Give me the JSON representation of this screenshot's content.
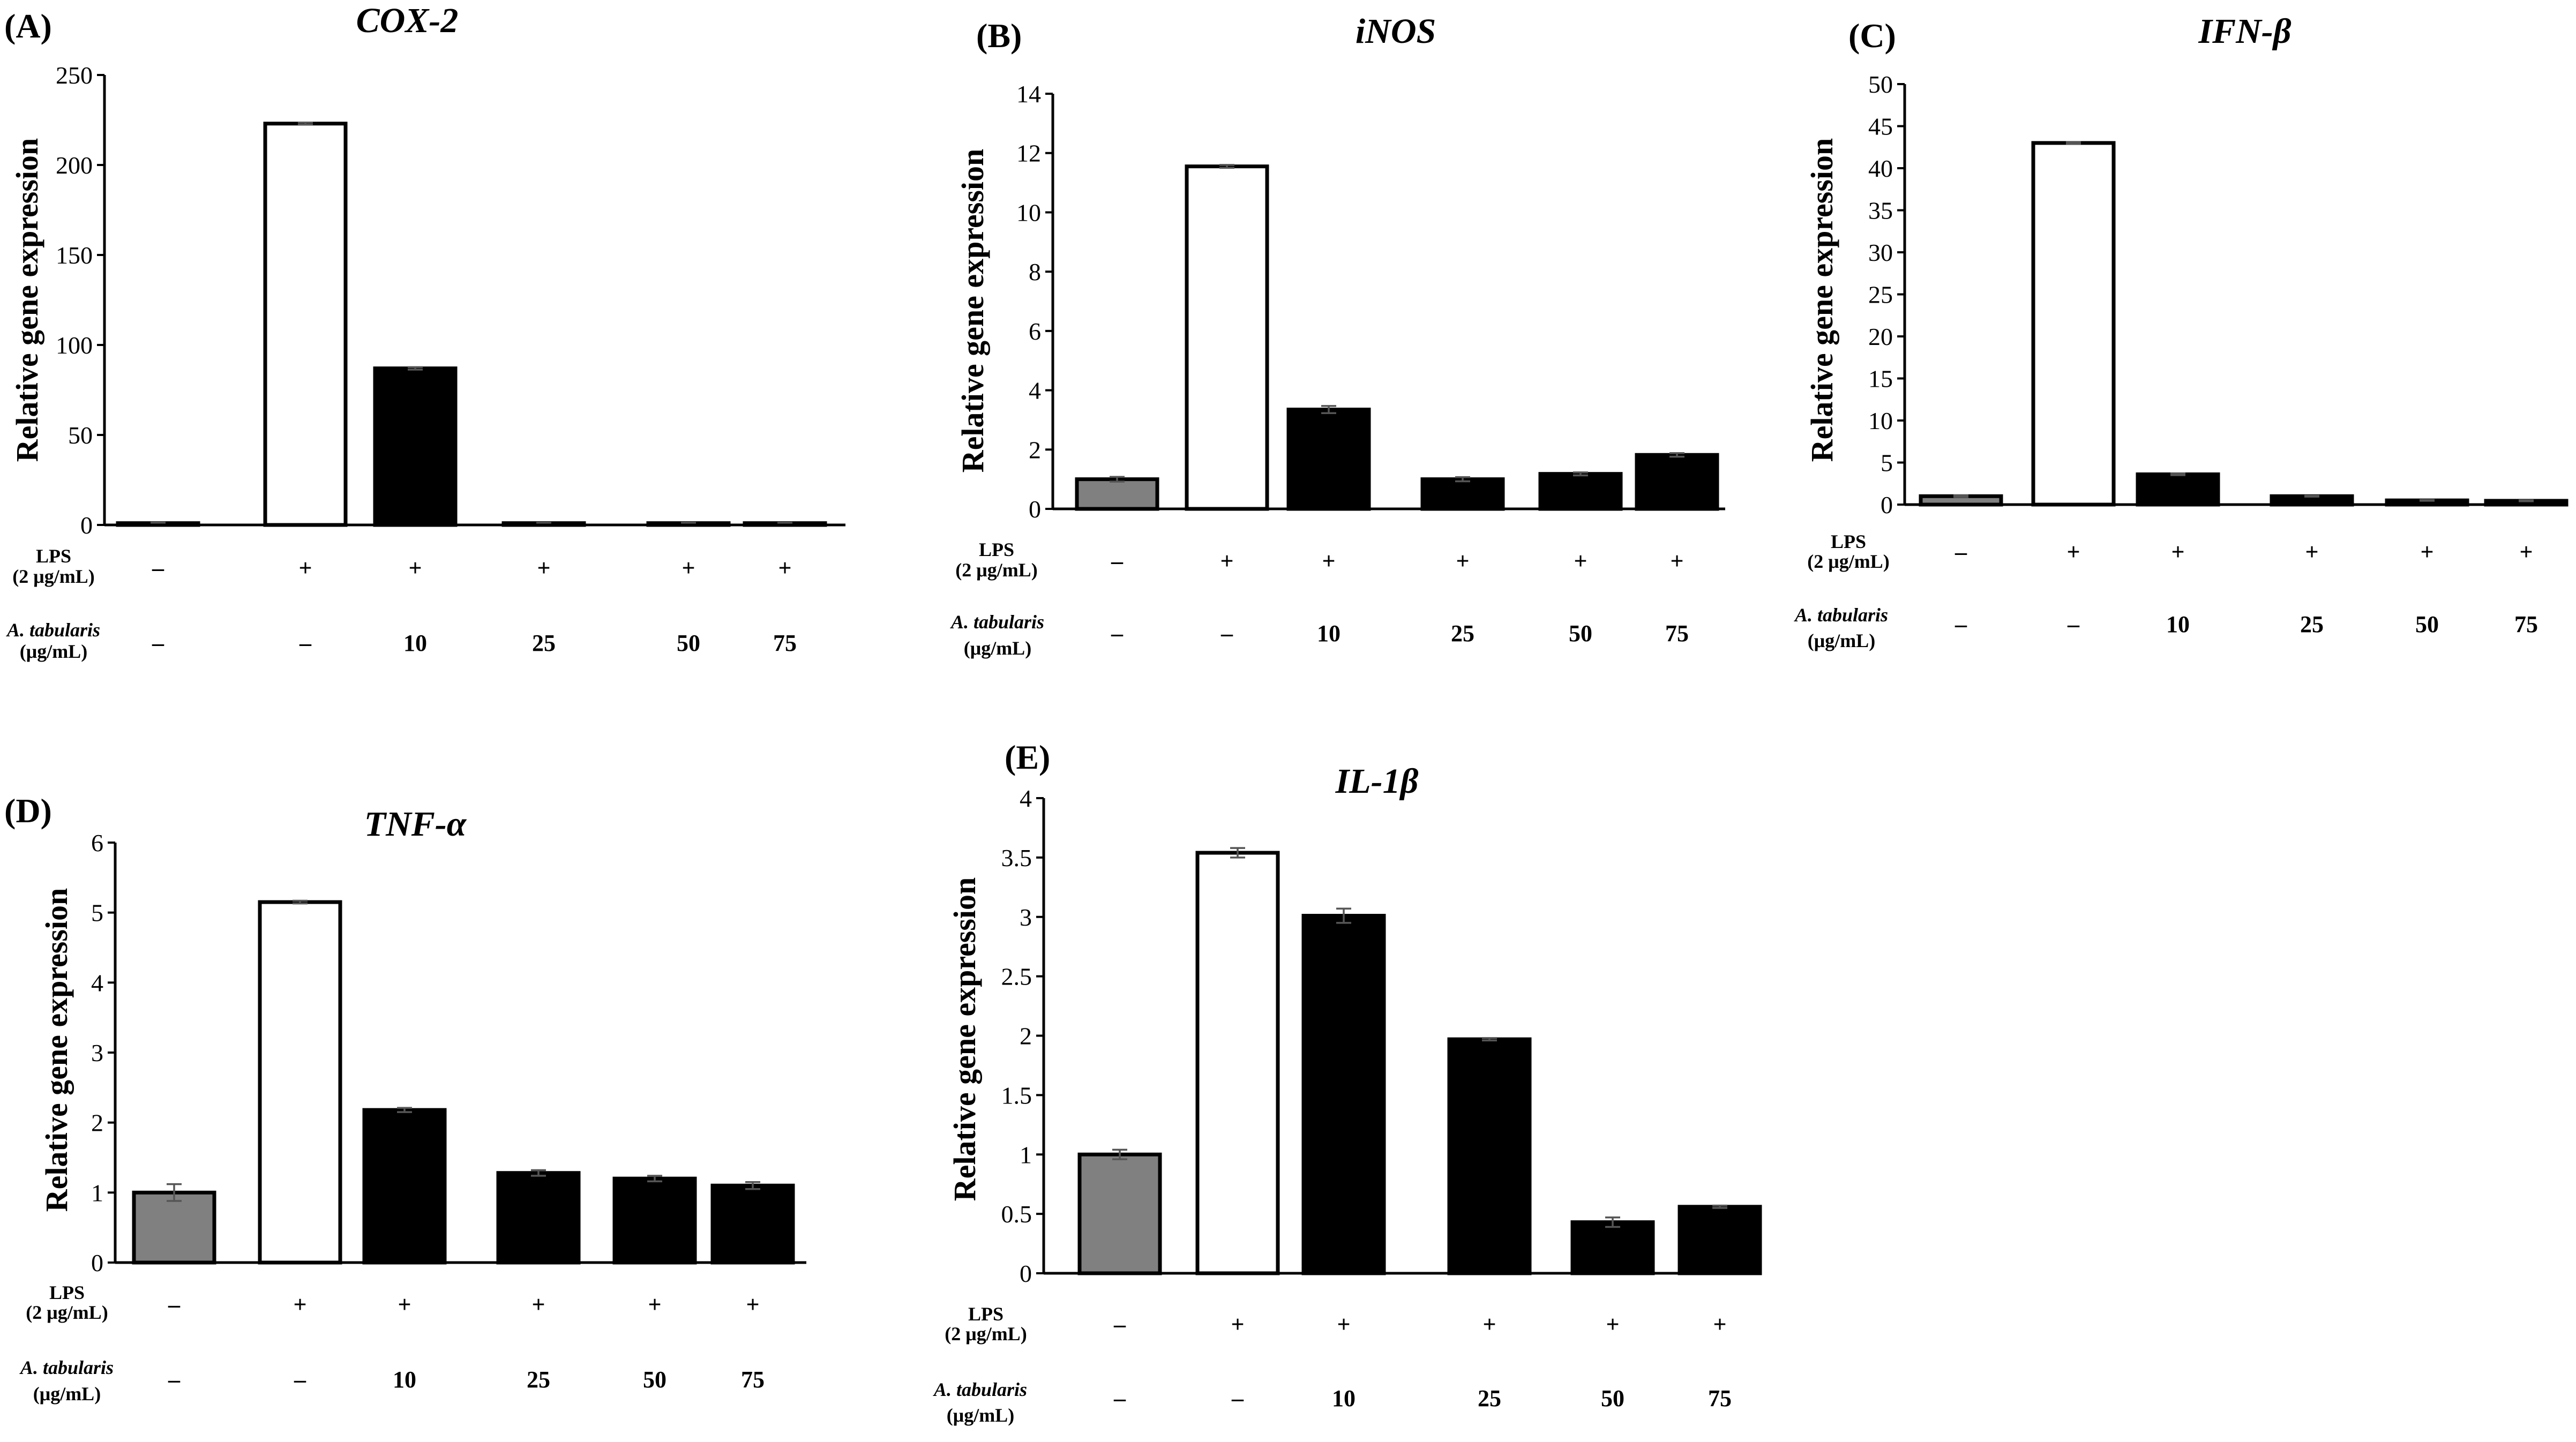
{
  "colors": {
    "control": "#808080",
    "lps": "#ffffff",
    "treatment": "#000000",
    "axis": "#000000"
  },
  "row_labels": {
    "lps_line1": "LPS",
    "lps_line2": "(2 μg/mL)",
    "at_line1": "A. tabularis",
    "at_line2": "(μg/mL)"
  },
  "lps_row": [
    "–",
    "+",
    "+",
    "+",
    "+",
    "+"
  ],
  "at_row": [
    "–",
    "–",
    "10",
    "25",
    "50",
    "75"
  ],
  "chart_data": [
    {
      "id": "A",
      "letter": "(A)",
      "type": "bar",
      "title": "COX-2",
      "ylabel": "Relative gene expression",
      "ylim": [
        0,
        250
      ],
      "yticks": [
        0,
        50,
        100,
        150,
        200,
        250
      ],
      "values": [
        1,
        223,
        87,
        1,
        1,
        1
      ],
      "errors": [
        0.3,
        0.6,
        0.7,
        0.2,
        0.2,
        0.2
      ],
      "fills": [
        "control",
        "lps",
        "treatment",
        "treatment",
        "treatment",
        "treatment"
      ]
    },
    {
      "id": "B",
      "letter": "(B)",
      "type": "bar",
      "title": "iNOS",
      "ylabel": "Relative gene expression",
      "ylim": [
        0,
        14
      ],
      "yticks": [
        0,
        2,
        4,
        6,
        8,
        10,
        12,
        14
      ],
      "values": [
        1.0,
        11.55,
        3.35,
        1.0,
        1.18,
        1.82
      ],
      "errors": [
        0.08,
        0.05,
        0.12,
        0.07,
        0.05,
        0.06
      ],
      "fills": [
        "control",
        "lps",
        "treatment",
        "treatment",
        "treatment",
        "treatment"
      ]
    },
    {
      "id": "C",
      "letter": "(C)",
      "type": "bar",
      "title": "IFN-β",
      "ylabel": "Relative gene expression",
      "ylim": [
        0,
        50
      ],
      "yticks": [
        0,
        5,
        10,
        15,
        20,
        25,
        30,
        35,
        40,
        45,
        50
      ],
      "values": [
        1.0,
        43.0,
        3.6,
        1.0,
        0.5,
        0.45
      ],
      "errors": [
        0.1,
        0.1,
        0.1,
        0.05,
        0.05,
        0.05
      ],
      "fills": [
        "control",
        "lps",
        "treatment",
        "treatment",
        "treatment",
        "treatment"
      ]
    },
    {
      "id": "D",
      "letter": "(D)",
      "type": "bar",
      "title": "TNF-α",
      "ylabel": "Relative gene expression",
      "ylim": [
        0,
        6
      ],
      "yticks": [
        0,
        1,
        2,
        3,
        4,
        5,
        6
      ],
      "values": [
        1.0,
        5.15,
        2.18,
        1.28,
        1.2,
        1.1
      ],
      "errors": [
        0.12,
        0.02,
        0.03,
        0.04,
        0.04,
        0.05
      ],
      "fills": [
        "control",
        "lps",
        "treatment",
        "treatment",
        "treatment",
        "treatment"
      ]
    },
    {
      "id": "E",
      "letter": "(E)",
      "type": "bar",
      "title": "IL-1β",
      "ylabel": "Relative gene expression",
      "ylim": [
        0,
        4
      ],
      "yticks": [
        0,
        0.5,
        1,
        1.5,
        2,
        2.5,
        3,
        3.5,
        4
      ],
      "ytick_labels": [
        "0",
        "0.5",
        "1",
        "1.5",
        "2",
        "2.5",
        "3",
        "3.5",
        "4"
      ],
      "values": [
        1.0,
        3.54,
        3.01,
        1.97,
        0.43,
        0.56
      ],
      "errors": [
        0.04,
        0.04,
        0.06,
        0.01,
        0.04,
        0.01
      ],
      "fills": [
        "control",
        "lps",
        "treatment",
        "treatment",
        "treatment",
        "treatment"
      ]
    }
  ]
}
